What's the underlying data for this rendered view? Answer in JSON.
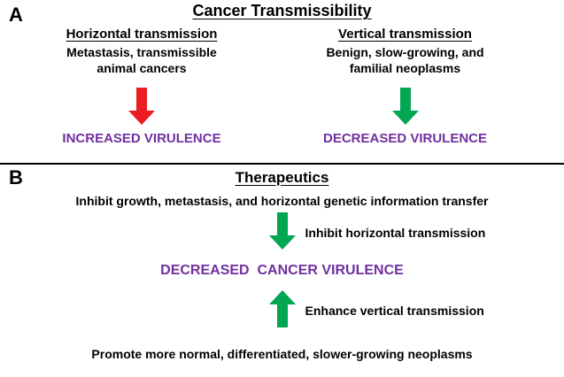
{
  "colors": {
    "red": "#EC1C24",
    "green": "#00A651",
    "purple": "#7030A0"
  },
  "panel_a": {
    "label": "A",
    "title": "Cancer Transmissibility",
    "left": {
      "heading": "Horizontal transmission",
      "description": "Metastasis, transmissible\nanimal cancers",
      "outcome": "INCREASED VIRULENCE"
    },
    "right": {
      "heading": "Vertical transmission",
      "description": "Benign, slow-growing, and\nfamilial neoplasms",
      "outcome": "DECREASED VIRULENCE"
    }
  },
  "panel_b": {
    "label": "B",
    "title": "Therapeutics",
    "top_statement": "Inhibit growth, metastasis, and horizontal genetic information transfer",
    "down_arrow_label": "Inhibit horizontal transmission",
    "central_outcome": "DECREASED  CANCER VIRULENCE",
    "up_arrow_label": "Enhance vertical transmission",
    "bottom_statement": "Promote more normal, differentiated, slower-growing neoplasms"
  }
}
